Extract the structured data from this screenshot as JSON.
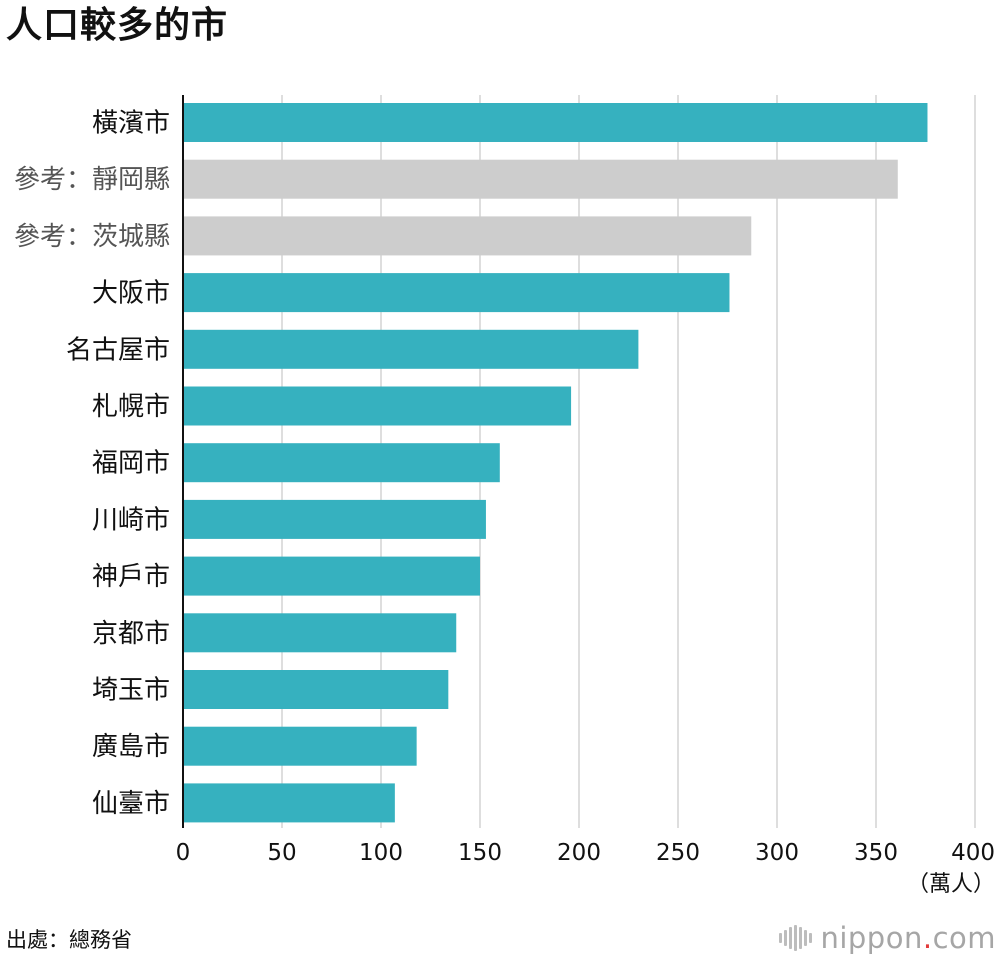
{
  "title": "人口較多的市",
  "source": "出處：總務省",
  "logo": {
    "name": "nippon",
    "dot": ".",
    "suffix": "com"
  },
  "colors": {
    "city": "#36b1bf",
    "reference": "#cdcdcd",
    "grid": "#d4d4d4",
    "axis": "#111111"
  },
  "chart_data": {
    "type": "bar",
    "orientation": "horizontal",
    "categories": [
      "橫濱市",
      "參考：靜岡縣",
      "參考：茨城縣",
      "大阪市",
      "名古屋市",
      "札幌市",
      "福岡市",
      "川崎市",
      "神戶市",
      "京都市",
      "埼玉市",
      "廣島市",
      "仙臺市"
    ],
    "values": [
      376,
      361,
      287,
      276,
      230,
      196,
      160,
      153,
      150,
      138,
      134,
      118,
      107
    ],
    "highlight": [
      "city",
      "reference",
      "reference",
      "city",
      "city",
      "city",
      "city",
      "city",
      "city",
      "city",
      "city",
      "city",
      "city"
    ],
    "xlim": [
      0,
      400
    ],
    "xticks": [
      0,
      50,
      100,
      150,
      200,
      250,
      300,
      350,
      400
    ],
    "xlabel": "（萬人）",
    "grid": true
  }
}
